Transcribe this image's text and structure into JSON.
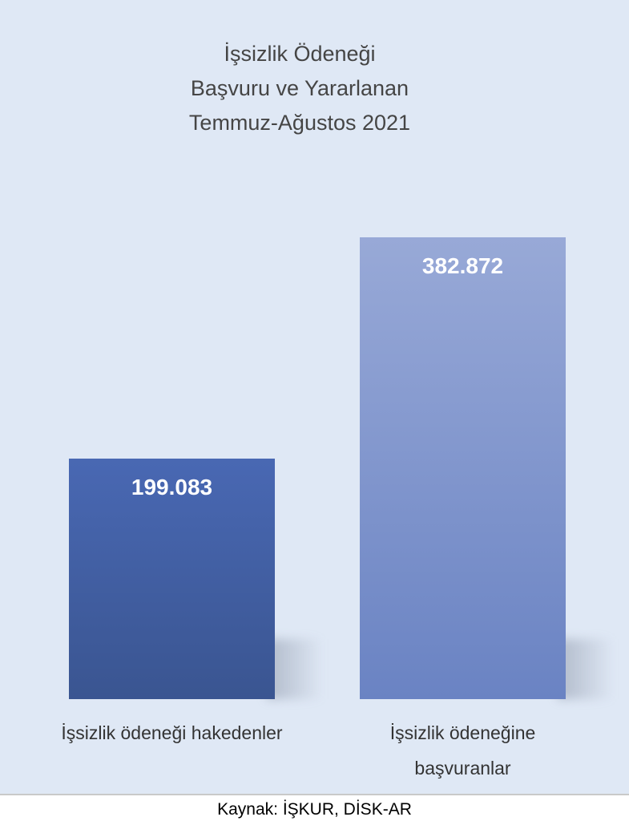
{
  "chart_data": {
    "type": "bar",
    "title": [
      "İşsizlik Ödeneği",
      "Başvuru ve Yararlanan",
      "Temmuz-Ağustos 2021"
    ],
    "categories": [
      "İşsizlik ödeneği hakedenler",
      "İşsizlik ödeneğine başvuranlar"
    ],
    "values": [
      199083,
      382872
    ],
    "value_labels": [
      "199.083",
      "382.872"
    ],
    "colors": [
      [
        "#4968b3",
        "#3a5591"
      ],
      [
        "#98a9d7",
        "#6a83c3"
      ]
    ],
    "source": "Kaynak: İŞKUR, DİSK-AR"
  }
}
